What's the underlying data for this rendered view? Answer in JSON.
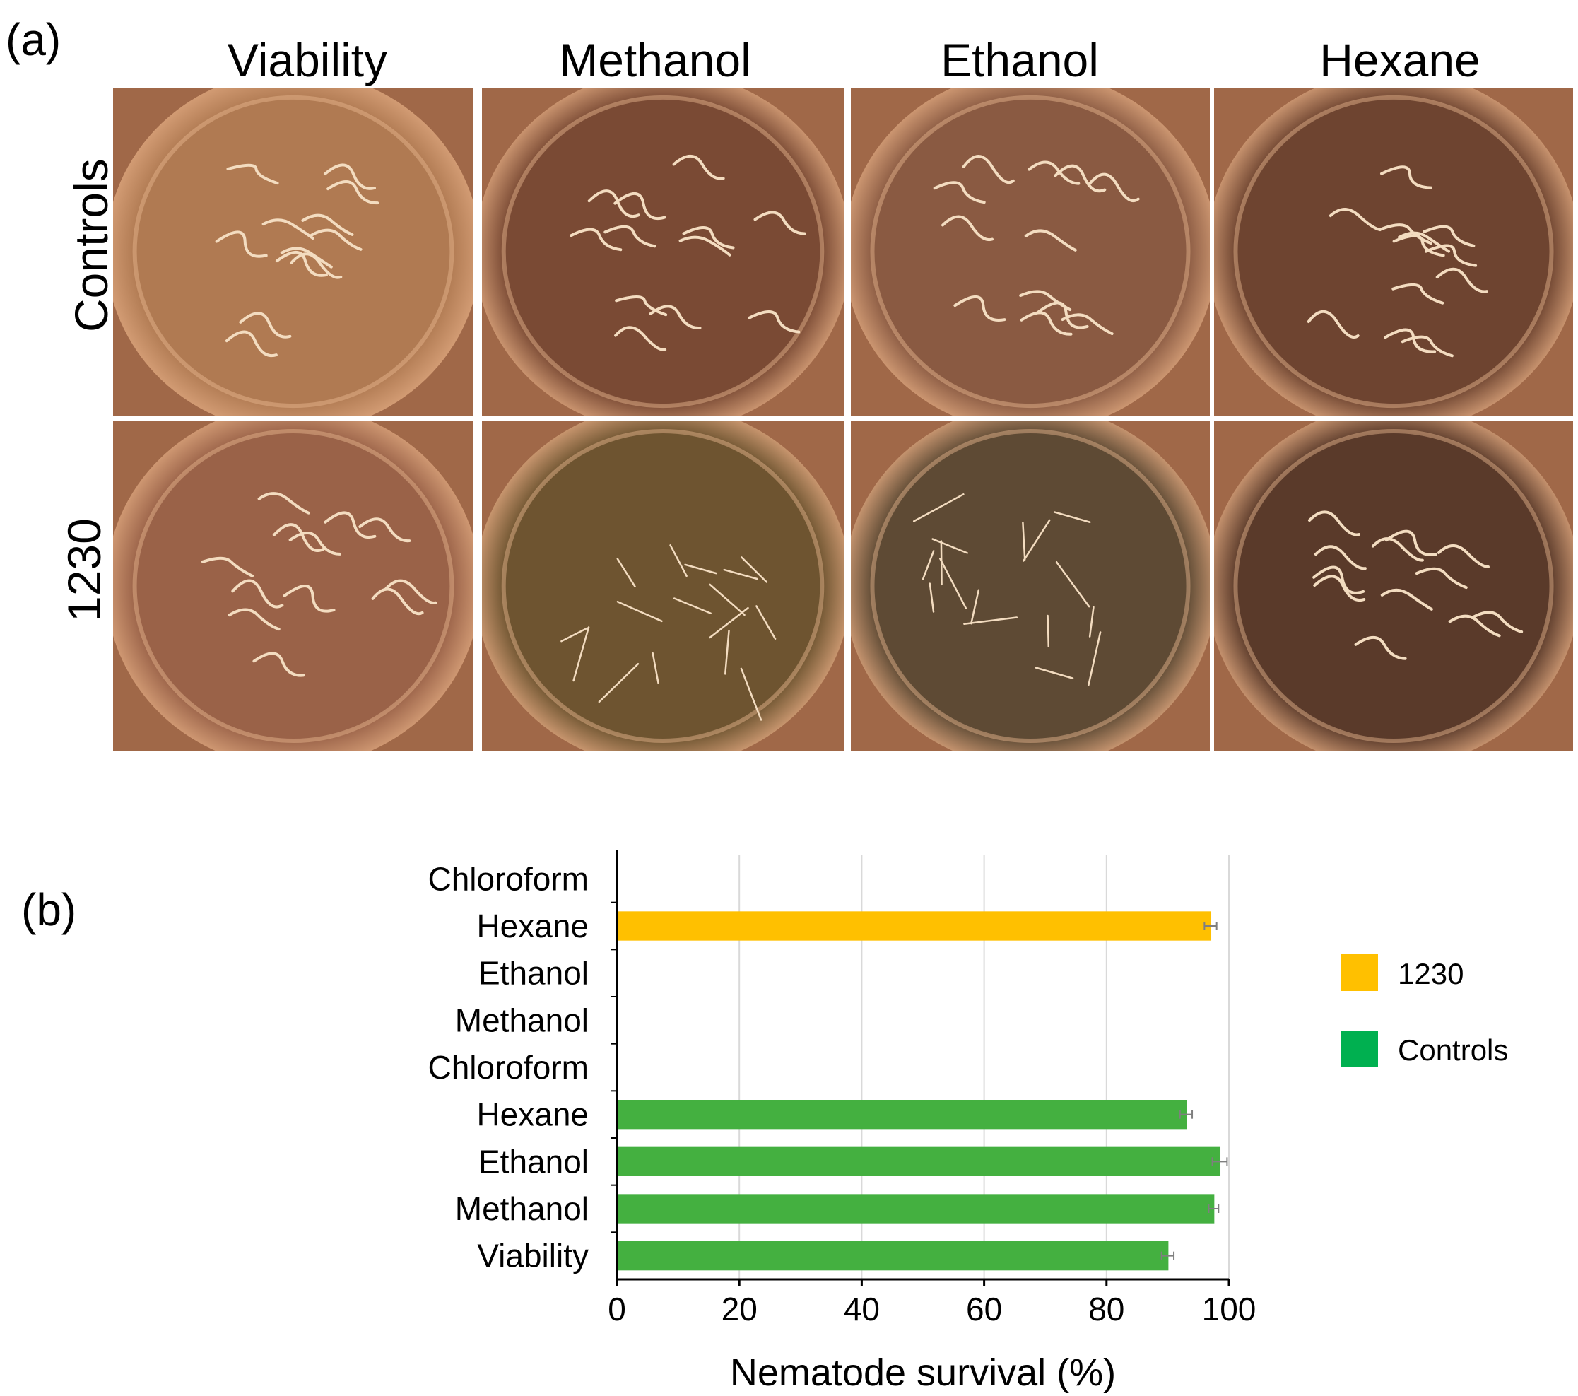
{
  "panel_a": {
    "label": "(a)",
    "columns": [
      "Viability",
      "Methanol",
      "Ethanol",
      "Hexane"
    ],
    "rows": [
      "Controls",
      "1230"
    ]
  },
  "panel_b": {
    "label": "(b)"
  },
  "colors": {
    "series_1230": "#FFC000",
    "series_controls": "#44B040",
    "legend_controls": "#00B050",
    "gridline": "#D9D9D9",
    "axis": "#000000",
    "errorbar": "#7F7F7F"
  },
  "chart_data": {
    "type": "bar",
    "orientation": "horizontal",
    "xlabel": "Nematode survival (%)",
    "xlim": [
      0,
      100
    ],
    "xticks": [
      0,
      20,
      40,
      60,
      80,
      100
    ],
    "grid": true,
    "legend": [
      "1230",
      "Controls"
    ],
    "legend_position": "right",
    "groups": [
      {
        "name": "1230",
        "categories": [
          "Chloroform",
          "Hexane",
          "Ethanol",
          "Methanol"
        ],
        "values": [
          0,
          97,
          0,
          0
        ],
        "errors": [
          0,
          1.0,
          0,
          0
        ]
      },
      {
        "name": "Controls",
        "categories": [
          "Chloroform",
          "Hexane",
          "Ethanol",
          "Methanol",
          "Viability"
        ],
        "values": [
          0,
          93,
          98.5,
          97.5,
          90
        ],
        "errors": [
          0,
          1.0,
          1.2,
          0.8,
          1.0
        ]
      }
    ]
  }
}
